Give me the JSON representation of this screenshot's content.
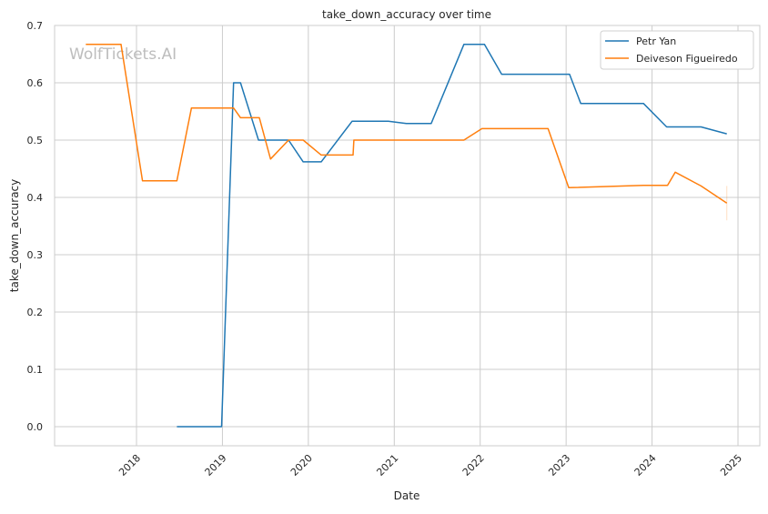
{
  "chart_data": {
    "type": "line",
    "title": "take_down_accuracy over time",
    "xlabel": "Date",
    "ylabel": "take_down_accuracy",
    "xlim": [
      2017.1,
      2025.25
    ],
    "ylim": [
      -0.033,
      0.7
    ],
    "x_ticks": [
      2018,
      2019,
      2020,
      2021,
      2022,
      2023,
      2024,
      2025
    ],
    "x_tick_labels": [
      "2018",
      "2019",
      "2020",
      "2021",
      "2022",
      "2023",
      "2024",
      "2025"
    ],
    "y_ticks": [
      0.0,
      0.1,
      0.2,
      0.3,
      0.4,
      0.5,
      0.6,
      0.7
    ],
    "y_tick_labels": [
      "0.0",
      "0.1",
      "0.2",
      "0.3",
      "0.4",
      "0.5",
      "0.6",
      "0.7"
    ],
    "grid": true,
    "legend_position": "top-right",
    "watermark": "WolfTickets.AI",
    "series": [
      {
        "name": "Petr Yan",
        "color": "#1f77b4",
        "x": [
          2018.47,
          2018.99,
          2019.13,
          2019.21,
          2019.42,
          2019.77,
          2019.94,
          2020.15,
          2020.51,
          2020.93,
          2021.14,
          2021.43,
          2021.81,
          2022.05,
          2022.25,
          2023.04,
          2023.17,
          2023.9,
          2024.17,
          2024.57,
          2024.87
        ],
        "y": [
          0.0,
          0.0,
          0.6,
          0.6,
          0.5,
          0.5,
          0.462,
          0.462,
          0.533,
          0.533,
          0.529,
          0.529,
          0.667,
          0.667,
          0.615,
          0.615,
          0.564,
          0.564,
          0.523,
          0.523,
          0.511
        ]
      },
      {
        "name": "Deiveson Figueiredo",
        "color": "#ff7f0e",
        "x": [
          2017.41,
          2017.82,
          2018.07,
          2018.47,
          2018.64,
          2019.13,
          2019.21,
          2019.43,
          2019.56,
          2019.77,
          2019.94,
          2020.15,
          2020.52,
          2020.53,
          2021.81,
          2022.02,
          2022.79,
          2023.03,
          2023.9,
          2024.18,
          2024.27,
          2024.57,
          2024.87
        ],
        "y": [
          0.667,
          0.667,
          0.429,
          0.429,
          0.556,
          0.556,
          0.539,
          0.539,
          0.467,
          0.5,
          0.5,
          0.474,
          0.474,
          0.5,
          0.5,
          0.52,
          0.52,
          0.417,
          0.421,
          0.421,
          0.444,
          0.42,
          0.39
        ]
      }
    ]
  }
}
